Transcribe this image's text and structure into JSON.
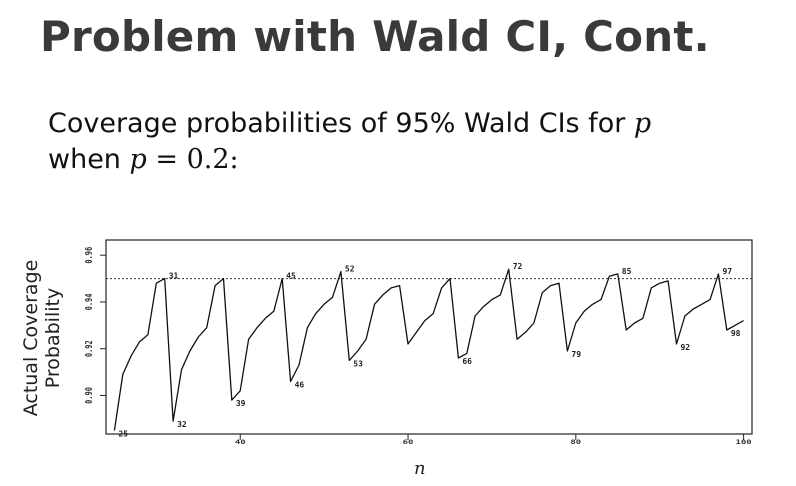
{
  "slide": {
    "title": "Problem with Wald CI, Cont.",
    "line1_text": "Coverage probabilities of 95% Wald CIs for ",
    "line1_var": "p",
    "line2_prefix": "when ",
    "line2_var": "p",
    "line2_eq": " = 0.2:"
  },
  "chart_data": {
    "type": "line",
    "title": "",
    "xlabel": "n",
    "ylabel": "Actual Coverage Probability",
    "xlim": [
      24,
      101
    ],
    "ylim": [
      0.8835,
      0.9665
    ],
    "x_ticks": [
      40,
      60,
      80,
      100
    ],
    "x_tick_labels": [
      "40",
      "60",
      "80",
      "100"
    ],
    "y_ticks": [
      0.9,
      0.92,
      0.94,
      0.96
    ],
    "y_tick_labels": [
      "0.90",
      "0.92",
      "0.94",
      "0.96"
    ],
    "reference_line": 0.95,
    "grid": false,
    "series": [
      {
        "x": [
          25,
          26,
          27,
          28,
          29,
          30,
          31,
          32,
          33,
          34,
          35,
          36,
          37,
          38,
          39,
          40,
          41,
          42,
          43,
          44,
          45,
          46,
          47,
          48,
          49,
          50,
          51,
          52,
          53,
          54,
          55,
          56,
          57,
          58,
          59,
          60,
          61,
          62,
          63,
          64,
          65,
          66,
          67,
          68,
          69,
          70,
          71,
          72,
          73,
          74,
          75,
          76,
          77,
          78,
          79,
          80,
          81,
          82,
          83,
          84,
          85,
          86,
          87,
          88,
          89,
          90,
          91,
          92,
          93,
          94,
          95,
          96,
          97,
          98,
          99,
          100
        ],
        "y": [
          0.885,
          0.909,
          0.917,
          0.923,
          0.926,
          0.948,
          0.95,
          0.889,
          0.911,
          0.919,
          0.925,
          0.929,
          0.947,
          0.95,
          0.898,
          0.902,
          0.924,
          0.929,
          0.933,
          0.936,
          0.95,
          0.906,
          0.913,
          0.929,
          0.935,
          0.939,
          0.942,
          0.953,
          0.915,
          0.919,
          0.924,
          0.939,
          0.943,
          0.946,
          0.947,
          0.922,
          0.927,
          0.932,
          0.935,
          0.946,
          0.95,
          0.916,
          0.918,
          0.934,
          0.938,
          0.941,
          0.943,
          0.954,
          0.924,
          0.927,
          0.931,
          0.944,
          0.947,
          0.948,
          0.919,
          0.931,
          0.936,
          0.939,
          0.941,
          0.951,
          0.952,
          0.928,
          0.931,
          0.933,
          0.946,
          0.948,
          0.949,
          0.922,
          0.934,
          0.937,
          0.939,
          0.941,
          0.952,
          0.928,
          0.93,
          0.932
        ]
      }
    ],
    "annotations": [
      {
        "text": "25",
        "x": 25,
        "y": 0.885,
        "pos": "right"
      },
      {
        "text": "31",
        "x": 31,
        "y": 0.95,
        "pos": "right"
      },
      {
        "text": "32",
        "x": 32,
        "y": 0.889,
        "pos": "right"
      },
      {
        "text": "39",
        "x": 39,
        "y": 0.898,
        "pos": "right"
      },
      {
        "text": "45",
        "x": 45,
        "y": 0.95,
        "pos": "right"
      },
      {
        "text": "46",
        "x": 46,
        "y": 0.906,
        "pos": "right"
      },
      {
        "text": "52",
        "x": 52,
        "y": 0.953,
        "pos": "right"
      },
      {
        "text": "53",
        "x": 53,
        "y": 0.915,
        "pos": "right"
      },
      {
        "text": "66",
        "x": 66,
        "y": 0.916,
        "pos": "right"
      },
      {
        "text": "72",
        "x": 72,
        "y": 0.954,
        "pos": "right"
      },
      {
        "text": "79",
        "x": 79,
        "y": 0.919,
        "pos": "right"
      },
      {
        "text": "85",
        "x": 85,
        "y": 0.952,
        "pos": "right"
      },
      {
        "text": "92",
        "x": 92,
        "y": 0.922,
        "pos": "right"
      },
      {
        "text": "97",
        "x": 97,
        "y": 0.952,
        "pos": "right"
      },
      {
        "text": "98",
        "x": 98,
        "y": 0.928,
        "pos": "right"
      }
    ]
  }
}
